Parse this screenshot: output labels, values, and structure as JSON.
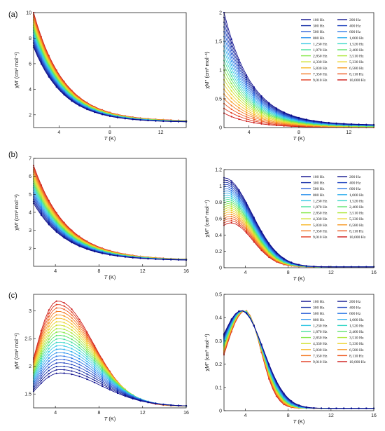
{
  "panel_labels": [
    "(a)",
    "(b)",
    "(c)"
  ],
  "legend_entries": [
    "100 Hz",
    "200 Hz",
    "300 Hz",
    "400 Hz",
    "500 Hz",
    "600 Hz",
    "800 Hz",
    "1,000 Hz",
    "1,230 Hz",
    "1,520 Hz",
    "1,870 Hz",
    "2,400 Hz",
    "2,850 Hz",
    "3,510 Hz",
    "4,330 Hz",
    "5,330 Hz",
    "5,830 Hz",
    "6,580 Hz",
    "7,350 Hz",
    "8,110 Hz",
    "9,010 Hz",
    "10,000 Hz"
  ],
  "series_colors": [
    "#0a0a8c",
    "#10158f",
    "#1a32a8",
    "#2346c0",
    "#2a5ed6",
    "#2c78e6",
    "#2f94ee",
    "#33b0ee",
    "#36c8e4",
    "#3ad8c8",
    "#44e09c",
    "#5ee46c",
    "#84e848",
    "#aee83a",
    "#d0e030",
    "#ecd42c",
    "#f8b828",
    "#f89a26",
    "#f47a24",
    "#ee5a22",
    "#e03a1e",
    "#cc1a18"
  ],
  "chart_data": [
    {
      "id": "a-left",
      "type": "line",
      "panel": "(a)",
      "xlabel": "T (K)",
      "ylabel": "χM' (cm³ mol⁻¹)",
      "xlim": [
        2,
        14
      ],
      "ylim": [
        1,
        10
      ],
      "xticks": [
        4,
        8,
        12
      ],
      "yticks": [
        2,
        4,
        6,
        8,
        10
      ],
      "legend": "none",
      "model": {
        "kind": "decay",
        "y_start_first": 7.3,
        "y_start_last": 10.0,
        "y_end_first": 1.45,
        "y_end_last": 1.55,
        "decay": 0.42
      }
    },
    {
      "id": "a-right",
      "type": "line",
      "panel": "(a)",
      "xlabel": "T (K)",
      "ylabel": "χM'' (cm³ mol⁻¹)",
      "xlim": [
        2,
        14
      ],
      "ylim": [
        0,
        2
      ],
      "xticks": [
        4,
        8,
        12
      ],
      "yticks": [
        0,
        0.5,
        1,
        1.5,
        2
      ],
      "ytick_labels": [
        "0",
        "0.5",
        "1",
        "1.5",
        "2"
      ],
      "legend": "top-right",
      "model": {
        "kind": "decay",
        "y_start_first": 2.0,
        "y_start_last": 0.25,
        "y_end_first": 0.05,
        "y_end_last": 0.0,
        "decay": 0.45
      }
    },
    {
      "id": "b-left",
      "type": "line",
      "panel": "(b)",
      "xlabel": "T (K)",
      "ylabel": "χM' (cm³ mol⁻¹)",
      "xlim": [
        2,
        16
      ],
      "ylim": [
        1,
        7
      ],
      "xticks": [
        4,
        8,
        12,
        16
      ],
      "yticks": [
        2,
        3,
        4,
        5,
        6,
        7
      ],
      "legend": "none",
      "model": {
        "kind": "decay",
        "y_start_first": 4.5,
        "y_start_last": 6.6,
        "y_end_first": 1.35,
        "y_end_last": 1.4,
        "decay": 0.33
      }
    },
    {
      "id": "b-right",
      "type": "line",
      "panel": "(b)",
      "xlabel": "T (K)",
      "ylabel": "χM'' (cm³ mol⁻¹)",
      "xlim": [
        2,
        16
      ],
      "ylim": [
        0,
        1.2
      ],
      "xticks": [
        4,
        8,
        12,
        16
      ],
      "yticks": [
        0,
        0.2,
        0.4,
        0.6,
        0.8,
        1.0,
        1.2
      ],
      "ytick_labels": [
        "0",
        "0.2",
        "0.4",
        "0.6",
        "0.8",
        "1",
        "1.2"
      ],
      "legend": "top-right",
      "model": {
        "kind": "peak",
        "y_start_first": 1.1,
        "y_start_last": 0.52,
        "peak_x_first": 2.0,
        "peak_x_last": 2.6,
        "peak_y_first": 1.1,
        "peak_y_last": 0.55,
        "y_end": 0.01,
        "width_first": 4.0,
        "width_last": 3.2
      }
    },
    {
      "id": "c-left",
      "type": "line",
      "panel": "(c)",
      "xlabel": "T (K)",
      "ylabel": "χM' (cm³ mol⁻¹)",
      "xlim": [
        2,
        16
      ],
      "ylim": [
        1.25,
        3.3
      ],
      "xticks": [
        4,
        8,
        12,
        16
      ],
      "yticks": [
        1.5,
        2,
        2.5,
        3
      ],
      "ytick_labels": [
        "1.5",
        "2",
        "2.5",
        "3"
      ],
      "legend": "none",
      "model": {
        "kind": "peak",
        "y_start_first": 1.55,
        "y_start_last": 2.15,
        "peak_x_first": 4.4,
        "peak_x_last": 4.2,
        "peak_y_first": 1.88,
        "peak_y_last": 3.18,
        "y_end": 1.28,
        "width_first": 6.0,
        "width_last": 5.0
      }
    },
    {
      "id": "c-right",
      "type": "line",
      "panel": "(c)",
      "xlabel": "T (K)",
      "ylabel": "χM'' (cm³ mol⁻¹)",
      "xlim": [
        2,
        16
      ],
      "ylim": [
        0,
        0.5
      ],
      "xticks": [
        4,
        8,
        12,
        16
      ],
      "yticks": [
        0,
        0.1,
        0.2,
        0.3,
        0.4,
        0.5
      ],
      "ytick_labels": [
        "0",
        "0.1",
        "0.2",
        "0.3",
        "0.4",
        "0.5"
      ],
      "legend": "top-right",
      "model": {
        "kind": "peak",
        "y_start_first": 0.33,
        "y_start_last": 0.24,
        "peak_x_first": 3.6,
        "peak_x_last": 4.0,
        "peak_y_first": 0.43,
        "peak_y_last": 0.43,
        "y_end": 0.01,
        "width_first": 3.2,
        "width_last": 2.2
      }
    }
  ]
}
